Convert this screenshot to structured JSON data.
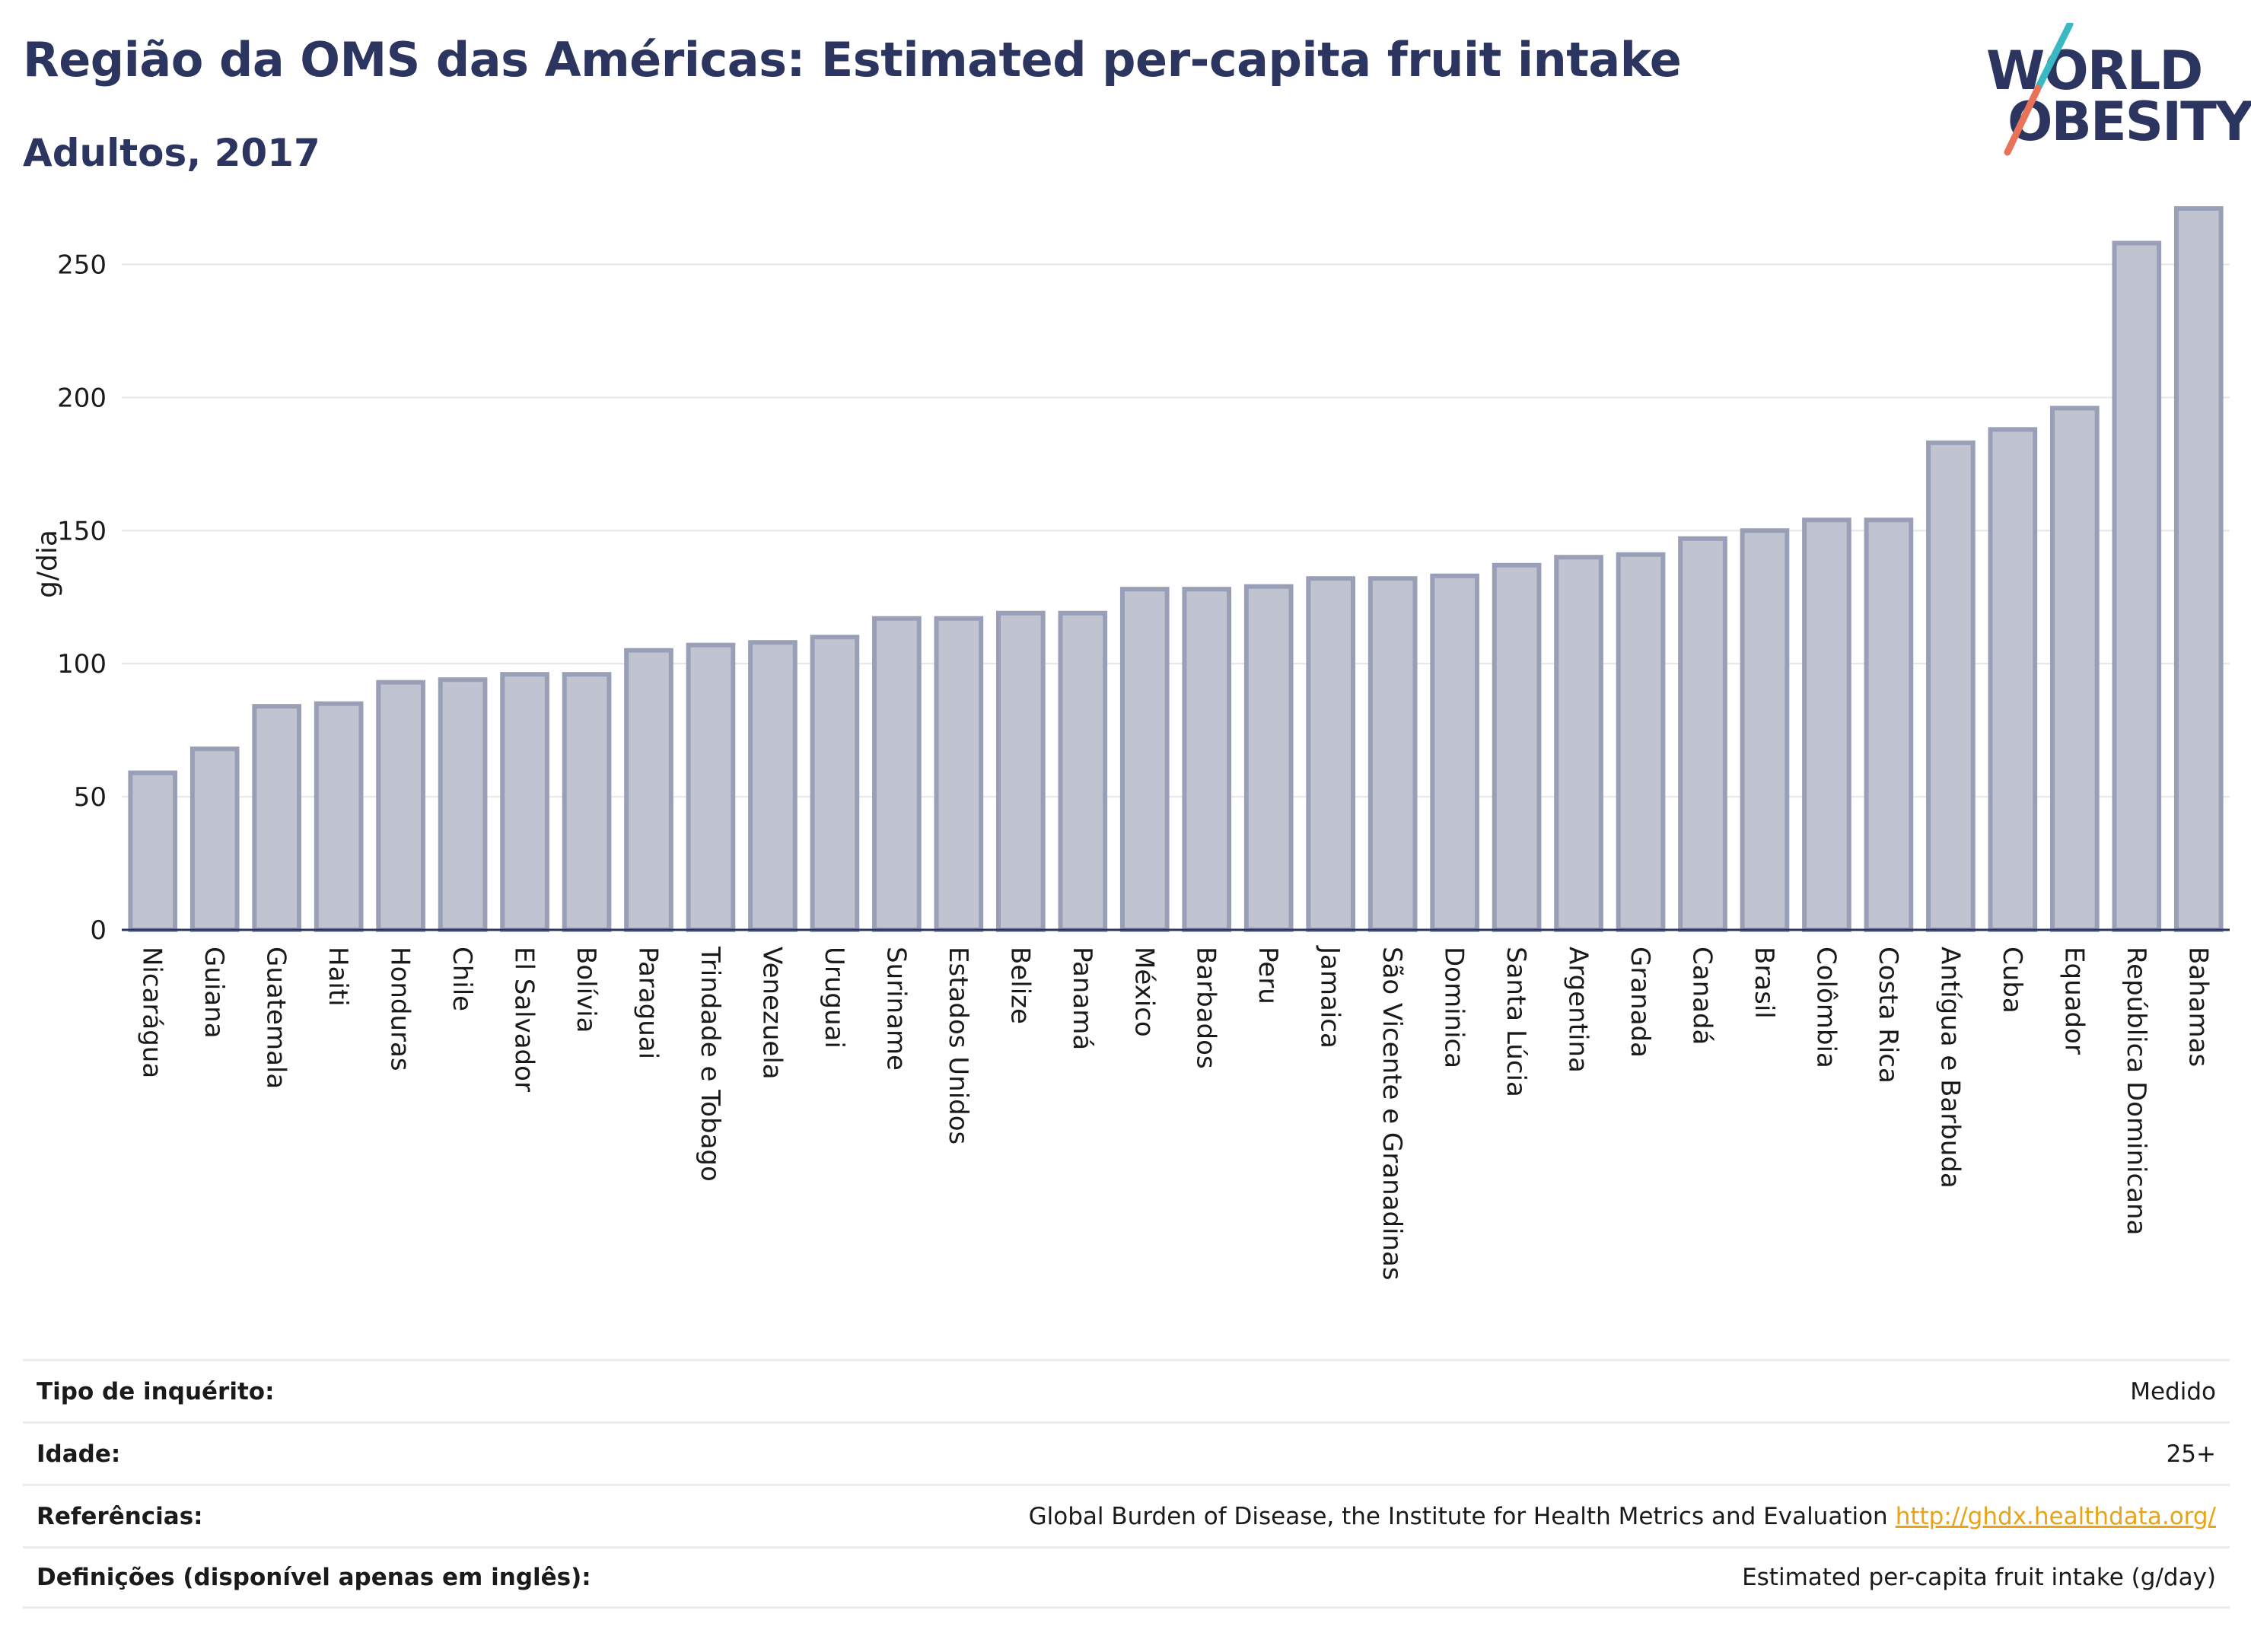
{
  "header": {
    "title": "Região da OMS das Américas: Estimated per-capita fruit intake",
    "subtitle": "Adultos, 2017"
  },
  "logo": {
    "line1": "WORLD",
    "line2": "OBESITY",
    "colors": {
      "text": "#2c3560",
      "slash_top": "#3ab8c4",
      "slash_bottom": "#e8735a"
    }
  },
  "chart_data": {
    "type": "bar",
    "ylabel": "g/dia",
    "ylim": [
      0,
      275
    ],
    "yticks": [
      0,
      50,
      100,
      150,
      200,
      250
    ],
    "grid": true,
    "bar_fill": "#c0c3d0",
    "bar_stroke": "#9a9fb8",
    "categories": [
      "Nicarágua",
      "Guiana",
      "Guatemala",
      "Haiti",
      "Honduras",
      "Chile",
      "El Salvador",
      "Bolívia",
      "Paraguai",
      "Trindade e Tobago",
      "Venezuela",
      "Uruguai",
      "Suriname",
      "Estados Unidos",
      "Belize",
      "Panamá",
      "México",
      "Barbados",
      "Peru",
      "Jamaica",
      "São Vicente e Granadinas",
      "Dominica",
      "Santa Lúcia",
      "Argentina",
      "Granada",
      "Canadá",
      "Brasil",
      "Colômbia",
      "Costa Rica",
      "Antígua e Barbuda",
      "Cuba",
      "Equador",
      "República Dominicana",
      "Bahamas"
    ],
    "values": [
      59,
      68,
      84,
      85,
      93,
      94,
      96,
      96,
      105,
      107,
      108,
      110,
      117,
      117,
      119,
      119,
      128,
      128,
      129,
      132,
      132,
      133,
      137,
      140,
      141,
      147,
      150,
      154,
      154,
      183,
      188,
      196,
      258,
      271
    ]
  },
  "details": [
    {
      "label": "Tipo de inquérito:",
      "value": "Medido",
      "link": ""
    },
    {
      "label": "Idade:",
      "value": "25+",
      "link": ""
    },
    {
      "label": "Referências:",
      "value": "Global Burden of Disease, the Institute for Health Metrics and Evaluation",
      "link": "http://ghdx.healthdata.org/"
    },
    {
      "label": "Definições (disponível apenas em inglês):",
      "value": "Estimated per-capita fruit intake (g/day)",
      "link": ""
    }
  ]
}
